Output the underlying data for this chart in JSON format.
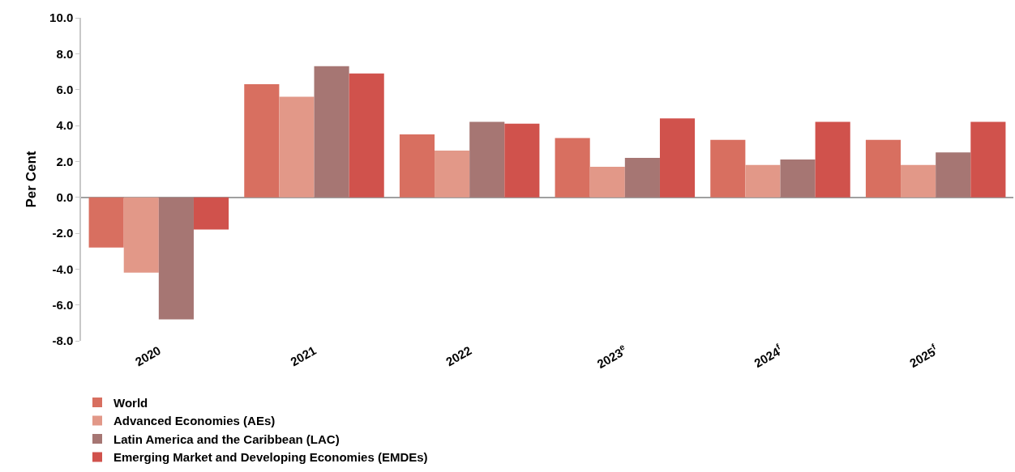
{
  "chart_data": {
    "type": "bar",
    "ylabel": "Per Cent",
    "categories": [
      "2020",
      "2021",
      "2022",
      "2023$^{e}$",
      "2024$^{f}$",
      "2025$^{f}$"
    ],
    "series": [
      {
        "name": "World",
        "color": "#d86f60",
        "values": [
          -2.8,
          6.3,
          3.5,
          3.3,
          3.2,
          3.2
        ]
      },
      {
        "name": "Advanced Economies (AEs)",
        "color": "#e29888",
        "values": [
          -4.2,
          5.6,
          2.6,
          1.7,
          1.8,
          1.8
        ]
      },
      {
        "name": "Latin America and the Caribbean (LAC)",
        "color": "#a67673",
        "values": [
          -6.8,
          7.3,
          4.2,
          2.2,
          2.1,
          2.5
        ]
      },
      {
        "name": "Emerging Market and Developing Economies (EMDEs)",
        "color": "#d0524c",
        "values": [
          -1.8,
          6.9,
          4.1,
          4.4,
          4.2,
          4.2
        ]
      }
    ],
    "ylim": [
      -8,
      10
    ],
    "yticks": [
      {
        "value": -8,
        "label": "-8.0"
      },
      {
        "value": -6,
        "label": "-6.0"
      },
      {
        "value": -4,
        "label": "-4.0"
      },
      {
        "value": -2,
        "label": "-2.0"
      },
      {
        "value": 0,
        "label": "0.0"
      },
      {
        "value": 2,
        "label": "2.0"
      },
      {
        "value": 4,
        "label": "4.0"
      },
      {
        "value": 6,
        "label": "6.0"
      },
      {
        "value": 8,
        "label": "8.0"
      },
      {
        "value": 10,
        "label": "10.0"
      }
    ],
    "legend": "bottom"
  }
}
